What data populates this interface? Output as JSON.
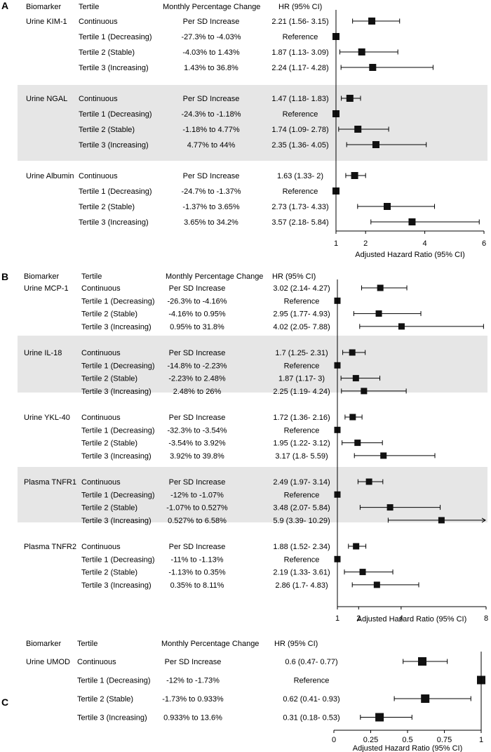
{
  "chart_data": [
    {
      "panel": "A",
      "type": "forest",
      "headers": [
        "Biomarker",
        "Tertile",
        "Monthly Percentage Change",
        "HR (95% CI)"
      ],
      "xlabel": "Adjusted Hazard Ratio (95% CI)",
      "xticks": [
        1,
        2,
        4,
        6
      ],
      "xlim": [
        1,
        6
      ],
      "reference_line": 1,
      "groups": [
        {
          "biomarker": "Urine KIM-1",
          "shaded": false,
          "rows": [
            {
              "tertile": "Continuous",
              "change": "Per SD Increase",
              "hr_text": "2.21 (1.56- 3.15)",
              "hr": 2.21,
              "lo": 1.56,
              "hi": 3.15
            },
            {
              "tertile": "Tertile 1 (Decreasing)",
              "change": "-27.3% to -4.03%",
              "hr_text": "Reference",
              "hr": 1,
              "lo": null,
              "hi": null
            },
            {
              "tertile": "Tertile 2 (Stable)",
              "change": "-4.03% to 1.43%",
              "hr_text": "1.87 (1.13- 3.09)",
              "hr": 1.87,
              "lo": 1.13,
              "hi": 3.09
            },
            {
              "tertile": "Tertile 3 (Increasing)",
              "change": "1.43% to 36.8%",
              "hr_text": "2.24 (1.17- 4.28)",
              "hr": 2.24,
              "lo": 1.17,
              "hi": 4.28
            }
          ]
        },
        {
          "biomarker": "Urine NGAL",
          "shaded": true,
          "rows": [
            {
              "tertile": "Continuous",
              "change": "Per SD Increase",
              "hr_text": "1.47 (1.18- 1.83)",
              "hr": 1.47,
              "lo": 1.18,
              "hi": 1.83
            },
            {
              "tertile": "Tertile 1 (Decreasing)",
              "change": "-24.3% to -1.18%",
              "hr_text": "Reference",
              "hr": 1,
              "lo": null,
              "hi": null
            },
            {
              "tertile": "Tertile 2 (Stable)",
              "change": "-1.18% to 4.77%",
              "hr_text": "1.74 (1.09- 2.78)",
              "hr": 1.74,
              "lo": 1.09,
              "hi": 2.78
            },
            {
              "tertile": "Tertile 3 (Increasing)",
              "change": "4.77% to 44%",
              "hr_text": "2.35 (1.36- 4.05)",
              "hr": 2.35,
              "lo": 1.36,
              "hi": 4.05
            }
          ]
        },
        {
          "biomarker": "Urine Albumin",
          "shaded": false,
          "rows": [
            {
              "tertile": "Continuous",
              "change": "Per SD Increase",
              "hr_text": "1.63 (1.33- 2)",
              "hr": 1.63,
              "lo": 1.33,
              "hi": 2.0
            },
            {
              "tertile": "Tertile 1 (Decreasing)",
              "change": "-24.7% to -1.37%",
              "hr_text": "Reference",
              "hr": 1,
              "lo": null,
              "hi": null
            },
            {
              "tertile": "Tertile 2 (Stable)",
              "change": "-1.37% to 3.65%",
              "hr_text": "2.73 (1.73- 4.33)",
              "hr": 2.73,
              "lo": 1.73,
              "hi": 4.33
            },
            {
              "tertile": "Tertile 3 (Increasing)",
              "change": "3.65% to 34.2%",
              "hr_text": "3.57 (2.18- 5.84)",
              "hr": 3.57,
              "lo": 2.18,
              "hi": 5.84
            }
          ]
        }
      ]
    },
    {
      "panel": "B",
      "type": "forest",
      "headers": [
        "Biomarker",
        "Tertile",
        "Monthly Percentage Change",
        "HR (95% CI)"
      ],
      "xlabel": "Adjusted Hazard Ratio (95% CI)",
      "xticks": [
        1,
        2,
        4,
        8
      ],
      "xlim": [
        1,
        8
      ],
      "reference_line": 1,
      "groups": [
        {
          "biomarker": "Urine MCP-1",
          "shaded": false,
          "rows": [
            {
              "tertile": "Continuous",
              "change": "Per SD Increase",
              "hr_text": "3.02 (2.14- 4.27)",
              "hr": 3.02,
              "lo": 2.14,
              "hi": 4.27
            },
            {
              "tertile": "Tertile 1 (Decreasing)",
              "change": "-26.3% to -4.16%",
              "hr_text": "Reference",
              "hr": 1,
              "lo": null,
              "hi": null
            },
            {
              "tertile": "Tertile 2 (Stable)",
              "change": "-4.16% to 0.95%",
              "hr_text": "2.95 (1.77- 4.93)",
              "hr": 2.95,
              "lo": 1.77,
              "hi": 4.93
            },
            {
              "tertile": "Tertile 3 (Increasing)",
              "change": "0.95% to 31.8%",
              "hr_text": "4.02 (2.05- 7.88)",
              "hr": 4.02,
              "lo": 2.05,
              "hi": 7.88
            }
          ]
        },
        {
          "biomarker": "Urine IL-18",
          "shaded": true,
          "rows": [
            {
              "tertile": "Continuous",
              "change": "Per SD Increase",
              "hr_text": "1.7 (1.25- 2.31)",
              "hr": 1.7,
              "lo": 1.25,
              "hi": 2.31
            },
            {
              "tertile": "Tertile 1 (Decreasing)",
              "change": "-14.8% to -2.23%",
              "hr_text": "Reference",
              "hr": 1,
              "lo": null,
              "hi": null
            },
            {
              "tertile": "Tertile 2 (Stable)",
              "change": "-2.23% to 2.48%",
              "hr_text": "1.87 (1.17- 3)",
              "hr": 1.87,
              "lo": 1.17,
              "hi": 3.0
            },
            {
              "tertile": "Tertile 3 (Increasing)",
              "change": "2.48% to 26%",
              "hr_text": "2.25 (1.19- 4.24)",
              "hr": 2.25,
              "lo": 1.19,
              "hi": 4.24
            }
          ]
        },
        {
          "biomarker": "Urine YKL-40",
          "shaded": false,
          "rows": [
            {
              "tertile": "Continuous",
              "change": "Per SD Increase",
              "hr_text": "1.72 (1.36- 2.16)",
              "hr": 1.72,
              "lo": 1.36,
              "hi": 2.16
            },
            {
              "tertile": "Tertile 1 (Decreasing)",
              "change": "-32.3% to -3.54%",
              "hr_text": "Reference",
              "hr": 1,
              "lo": null,
              "hi": null
            },
            {
              "tertile": "Tertile 2 (Stable)",
              "change": "-3.54% to 3.92%",
              "hr_text": "1.95 (1.22- 3.12)",
              "hr": 1.95,
              "lo": 1.22,
              "hi": 3.12
            },
            {
              "tertile": "Tertile 3 (Increasing)",
              "change": "3.92% to 39.8%",
              "hr_text": "3.17 (1.8- 5.59)",
              "hr": 3.17,
              "lo": 1.8,
              "hi": 5.59
            }
          ]
        },
        {
          "biomarker": "Plasma TNFR1",
          "shaded": true,
          "rows": [
            {
              "tertile": "Continuous",
              "change": "Per SD Increase",
              "hr_text": "2.49 (1.97- 3.14)",
              "hr": 2.49,
              "lo": 1.97,
              "hi": 3.14
            },
            {
              "tertile": "Tertile 1 (Decreasing)",
              "change": "-12% to -1.07%",
              "hr_text": "Reference",
              "hr": 1,
              "lo": null,
              "hi": null
            },
            {
              "tertile": "Tertile 2 (Stable)",
              "change": "-1.07% to 0.527%",
              "hr_text": "3.48 (2.07- 5.84)",
              "hr": 3.48,
              "lo": 2.07,
              "hi": 5.84
            },
            {
              "tertile": "Tertile 3 (Increasing)",
              "change": "0.527% to 6.58%",
              "hr_text": "5.9 (3.39- 10.29)",
              "hr": 5.9,
              "lo": 3.39,
              "hi": 10.29
            }
          ]
        },
        {
          "biomarker": "Plasma TNFR2",
          "shaded": false,
          "rows": [
            {
              "tertile": "Continuous",
              "change": "Per SD Increase",
              "hr_text": "1.88 (1.52- 2.34)",
              "hr": 1.88,
              "lo": 1.52,
              "hi": 2.34
            },
            {
              "tertile": "Tertile 1 (Decreasing)",
              "change": "-11% to -1.13%",
              "hr_text": "Reference",
              "hr": 1,
              "lo": null,
              "hi": null
            },
            {
              "tertile": "Tertile 2 (Stable)",
              "change": "-1.13% to 0.35%",
              "hr_text": "2.19 (1.33- 3.61)",
              "hr": 2.19,
              "lo": 1.33,
              "hi": 3.61
            },
            {
              "tertile": "Tertile 3 (Increasing)",
              "change": "0.35% to 8.11%",
              "hr_text": "2.86 (1.7- 4.83)",
              "hr": 2.86,
              "lo": 1.7,
              "hi": 4.83
            }
          ]
        }
      ]
    },
    {
      "panel": "C",
      "type": "forest",
      "headers": [
        "Biomarker",
        "Tertile",
        "Monthly Percentage Change",
        "HR (95% CI)"
      ],
      "xlabel": "Adjusted Hazard Ratio (95% CI)",
      "xticks": [
        "0",
        "0.25",
        "0.5",
        "0.75",
        "1"
      ],
      "xlim": [
        0,
        1
      ],
      "reference_line": 1,
      "groups": [
        {
          "biomarker": "Urine UMOD",
          "shaded": false,
          "rows": [
            {
              "tertile": "Continuous",
              "change": "Per SD Increase",
              "hr_text": "0.6 (0.47- 0.77)",
              "hr": 0.6,
              "lo": 0.47,
              "hi": 0.77
            },
            {
              "tertile": "Tertile 1 (Decreasing)",
              "change": "-12% to -1.73%",
              "hr_text": "Reference",
              "hr": 1,
              "lo": null,
              "hi": null
            },
            {
              "tertile": "Tertile 2 (Stable)",
              "change": "-1.73% to 0.933%",
              "hr_text": "0.62 (0.41- 0.93)",
              "hr": 0.62,
              "lo": 0.41,
              "hi": 0.93
            },
            {
              "tertile": "Tertile 3 (Increasing)",
              "change": "0.933% to 13.6%",
              "hr_text": "0.31 (0.18- 0.53)",
              "hr": 0.31,
              "lo": 0.18,
              "hi": 0.53
            }
          ]
        }
      ]
    }
  ]
}
